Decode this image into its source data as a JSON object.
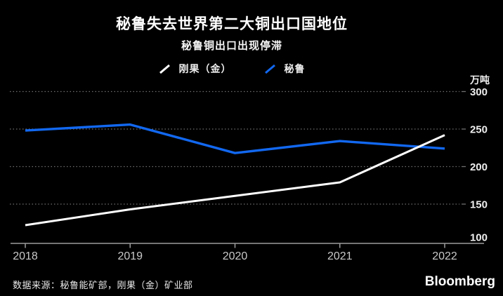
{
  "header": {
    "title": "秘鲁失去世界第二大铜出口国地位",
    "subtitle": "秘鲁铜出口出现停滞"
  },
  "chart_data": {
    "type": "line",
    "x": [
      2018,
      2019,
      2020,
      2021,
      2022
    ],
    "series": [
      {
        "name": "刚果（金）",
        "color": "#ffffff",
        "values": [
          122,
          143,
          161,
          179,
          242
        ]
      },
      {
        "name": "秘鲁",
        "color": "#1268f0",
        "values": [
          248,
          256,
          218,
          234,
          224
        ]
      }
    ],
    "unit_label": "万吨",
    "y_ticks": [
      100,
      150,
      200,
      250,
      300
    ],
    "ylim": [
      98,
      310
    ],
    "grid": "horizontal-dotted",
    "legend_position": "top-center",
    "colors": {
      "background": "#000000",
      "gridline": "#6f6f6f",
      "axis": "#9c9c9c",
      "x_labels": "#c9c9c9",
      "y_labels": "#efefef"
    }
  },
  "footer": {
    "source": "数据来源：秘鲁能矿部，刚果（金）矿业部",
    "brand": "Bloomberg"
  }
}
